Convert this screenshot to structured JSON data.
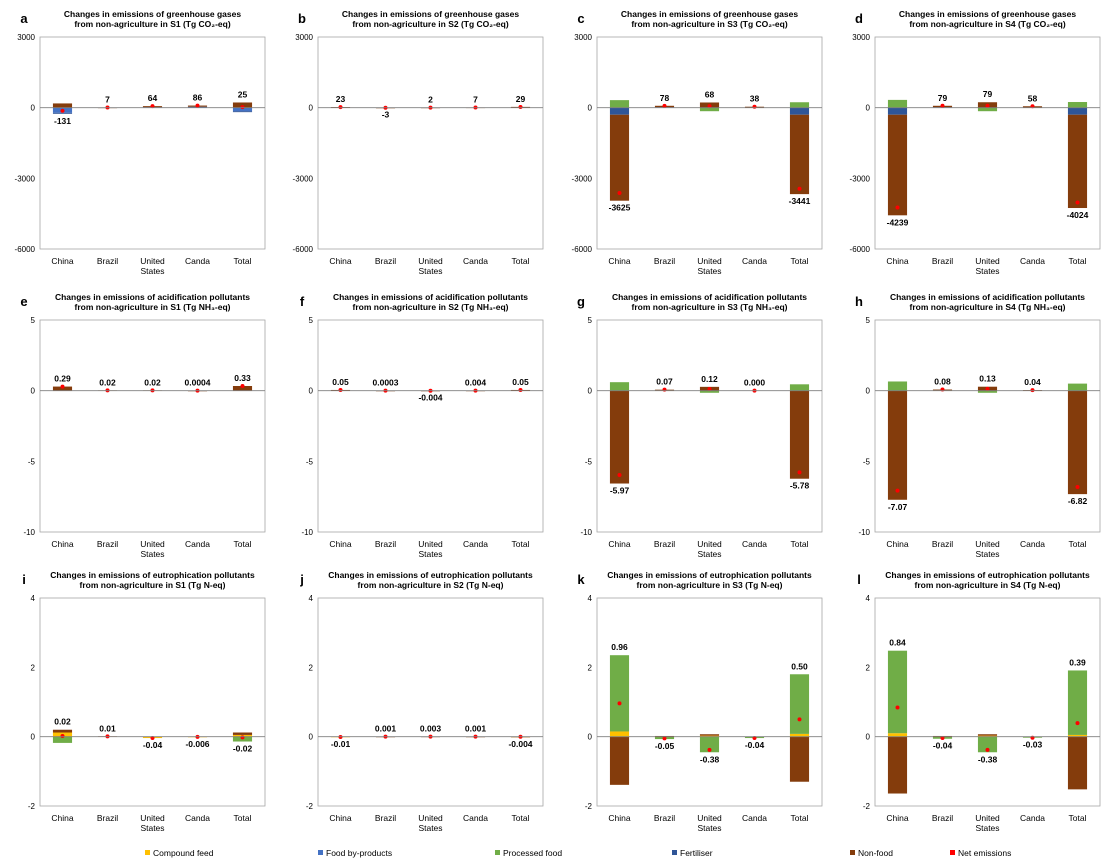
{
  "colors": {
    "compound_feed": "#ffc000",
    "food_by_products": "#4472c4",
    "processed_food": "#70ad47",
    "fertiliser": "#2f5597",
    "non_food": "#843c0c",
    "net_emissions": "#ff0000"
  },
  "legend": [
    "Compound feed",
    "Food by-products",
    "Processed food",
    "Fertiliser",
    "Non-food",
    "Net emissions"
  ],
  "chart_data": [
    {
      "id": "a",
      "type": "bar",
      "stacked": true,
      "title_lines": [
        "Changes in emissions of greenhouse gases",
        "from non-agriculture  in S1 (Tg CO₂-eq)"
      ],
      "categories": [
        "China",
        "Brazil",
        "United States",
        "Canda",
        "Total"
      ],
      "ylim": [
        -6000,
        3000
      ],
      "yticks": [
        "3000",
        "0",
        "-3000",
        "-6000"
      ],
      "net_labels": [
        "-131",
        "7",
        "64",
        "86",
        "25"
      ],
      "net": [
        -131,
        7,
        64,
        86,
        25
      ],
      "series": [
        {
          "key": "compound_feed",
          "values": [
            0,
            0,
            0,
            0,
            0
          ]
        },
        {
          "key": "food_by_products",
          "values": [
            -220,
            0,
            20,
            40,
            -150
          ]
        },
        {
          "key": "processed_food",
          "values": [
            0,
            0,
            0,
            0,
            0
          ]
        },
        {
          "key": "fertiliser",
          "values": [
            -40,
            0,
            0,
            0,
            -40
          ]
        },
        {
          "key": "non_food",
          "values": [
            180,
            5,
            45,
            50,
            220
          ]
        }
      ]
    },
    {
      "id": "b",
      "type": "bar",
      "stacked": true,
      "title_lines": [
        "Changes in emissions of greenhouse gases",
        "from non-agriculture in S2 (Tg CO₂-eq)"
      ],
      "categories": [
        "China",
        "Brazil",
        "United States",
        "Canda",
        "Total"
      ],
      "ylim": [
        -6000,
        3000
      ],
      "yticks": [
        "3000",
        "0",
        "-3000",
        "-6000"
      ],
      "net_labels": [
        "23",
        "-3",
        "2",
        "7",
        "29"
      ],
      "net": [
        23,
        -3,
        2,
        7,
        29
      ],
      "series": [
        {
          "key": "non_food",
          "values": [
            25,
            -3,
            3,
            8,
            33
          ]
        }
      ]
    },
    {
      "id": "c",
      "type": "bar",
      "stacked": true,
      "title_lines": [
        "Changes in emissions of greenhouse gases",
        "from non-agriculture in S3 (Tg CO₂-eq)"
      ],
      "categories": [
        "China",
        "Brazil",
        "United States",
        "Canda",
        "Total"
      ],
      "ylim": [
        -6000,
        3000
      ],
      "yticks": [
        "3000",
        "0",
        "-3000",
        "-6000"
      ],
      "net_labels": [
        "-3625",
        "78",
        "68",
        "38",
        "-3441"
      ],
      "net": [
        -3625,
        78,
        68,
        38,
        -3441
      ],
      "series": [
        {
          "key": "compound_feed",
          "values": [
            0,
            0,
            0,
            0,
            0
          ]
        },
        {
          "key": "food_by_products",
          "values": [
            0,
            20,
            0,
            0,
            0
          ]
        },
        {
          "key": "processed_food",
          "values": [
            320,
            0,
            -150,
            0,
            230
          ]
        },
        {
          "key": "fertiliser",
          "values": [
            -300,
            0,
            0,
            0,
            -300
          ]
        },
        {
          "key": "non_food",
          "values": [
            -3650,
            60,
            220,
            40,
            -3370
          ]
        }
      ]
    },
    {
      "id": "d",
      "type": "bar",
      "stacked": true,
      "title_lines": [
        "Changes in emissions of greenhouse gases",
        "from non-agriculture in S4 (Tg CO₂-eq)"
      ],
      "categories": [
        "China",
        "Brazil",
        "United States",
        "Canda",
        "Total"
      ],
      "ylim": [
        -6000,
        3000
      ],
      "yticks": [
        "3000",
        "0",
        "-3000",
        "-6000"
      ],
      "net_labels": [
        "-4239",
        "79",
        "79",
        "58",
        "-4024"
      ],
      "net": [
        -4239,
        79,
        79,
        58,
        -4024
      ],
      "series": [
        {
          "key": "compound_feed",
          "values": [
            0,
            0,
            0,
            0,
            0
          ]
        },
        {
          "key": "food_by_products",
          "values": [
            0,
            20,
            0,
            0,
            0
          ]
        },
        {
          "key": "processed_food",
          "values": [
            330,
            0,
            -150,
            0,
            240
          ]
        },
        {
          "key": "fertiliser",
          "values": [
            -300,
            0,
            0,
            0,
            -300
          ]
        },
        {
          "key": "non_food",
          "values": [
            -4270,
            60,
            230,
            60,
            -3960
          ]
        }
      ]
    },
    {
      "id": "e",
      "type": "bar",
      "stacked": true,
      "title_lines": [
        "Changes in emissions of acidification pollutants",
        "from non-agriculture in S1 (Tg NH₃-eq)"
      ],
      "categories": [
        "China",
        "Brazil",
        "United States",
        "Canda",
        "Total"
      ],
      "ylim": [
        -10,
        5
      ],
      "yticks": [
        "5",
        "0",
        "-5",
        "-10"
      ],
      "net_labels": [
        "0.29",
        "0.02",
        "0.02",
        "0.0004",
        "0.33"
      ],
      "net": [
        0.29,
        0.02,
        0.02,
        0.0004,
        0.33
      ],
      "series": [
        {
          "key": "non_food",
          "values": [
            0.29,
            0.02,
            0.02,
            0.0004,
            0.33
          ]
        }
      ]
    },
    {
      "id": "f",
      "type": "bar",
      "stacked": true,
      "title_lines": [
        "Changes in emissions of acidification pollutants",
        "from non-agriculture in S2 (Tg NH₃-eq)"
      ],
      "categories": [
        "China",
        "Brazil",
        "United States",
        "Canda",
        "Total"
      ],
      "ylim": [
        -10,
        5
      ],
      "yticks": [
        "5",
        "0",
        "-5",
        "-10"
      ],
      "net_labels": [
        "0.05",
        "0.0003",
        "-0.004",
        "0.004",
        "0.05"
      ],
      "net": [
        0.05,
        0.0003,
        -0.004,
        0.004,
        0.05
      ],
      "series": [
        {
          "key": "non_food",
          "values": [
            0.05,
            0.0003,
            -0.004,
            0.004,
            0.05
          ]
        }
      ]
    },
    {
      "id": "g",
      "type": "bar",
      "stacked": true,
      "title_lines": [
        "Changes in emissions of acidification pollutants",
        "from non-agriculture in S3 (Tg NH₃-eq)"
      ],
      "categories": [
        "China",
        "Brazil",
        "United States",
        "Canda",
        "Total"
      ],
      "ylim": [
        -10,
        5
      ],
      "yticks": [
        "5",
        "0",
        "-5",
        "-10"
      ],
      "net_labels": [
        "-5.97",
        "0.07",
        "0.12",
        "0.000",
        "-5.78"
      ],
      "net": [
        -5.97,
        0.07,
        0.12,
        0.0,
        -5.78
      ],
      "series": [
        {
          "key": "processed_food",
          "values": [
            0.6,
            0.02,
            -0.15,
            0,
            0.45
          ]
        },
        {
          "key": "non_food",
          "values": [
            -6.57,
            0.05,
            0.27,
            0,
            -6.23
          ]
        }
      ]
    },
    {
      "id": "h",
      "type": "bar",
      "stacked": true,
      "title_lines": [
        "Changes in emissions of acidification pollutants",
        "from non-agriculture in S4 (Tg NH₃-eq)"
      ],
      "categories": [
        "China",
        "Brazil",
        "United States",
        "Canda",
        "Total"
      ],
      "ylim": [
        -10,
        5
      ],
      "yticks": [
        "5",
        "0",
        "-5",
        "-10"
      ],
      "net_labels": [
        "-7.07",
        "0.08",
        "0.13",
        "0.04",
        "-6.82"
      ],
      "net": [
        -7.07,
        0.08,
        0.13,
        0.04,
        -6.82
      ],
      "series": [
        {
          "key": "processed_food",
          "values": [
            0.65,
            0.02,
            -0.15,
            0,
            0.5
          ]
        },
        {
          "key": "non_food",
          "values": [
            -7.72,
            0.06,
            0.28,
            0.04,
            -7.32
          ]
        }
      ]
    },
    {
      "id": "i",
      "type": "bar",
      "stacked": true,
      "title_lines": [
        "Changes in emissions of eutrophication pollutants",
        "from non-agriculture in S1 (Tg N-eq)"
      ],
      "categories": [
        "China",
        "Brazil",
        "United States",
        "Canda",
        "Total"
      ],
      "ylim": [
        -2,
        4
      ],
      "yticks": [
        "4",
        "2",
        "0",
        "-2"
      ],
      "net_labels": [
        "0.02",
        "0.01",
        "-0.04",
        "-0.006",
        "-0.02"
      ],
      "net": [
        0.02,
        0.01,
        -0.04,
        -0.006,
        -0.02
      ],
      "series": [
        {
          "key": "compound_feed",
          "values": [
            0.12,
            0,
            -0.04,
            -0.006,
            0.05
          ]
        },
        {
          "key": "processed_food",
          "values": [
            -0.18,
            0,
            0,
            0,
            -0.14
          ]
        },
        {
          "key": "non_food",
          "values": [
            0.08,
            0.01,
            0,
            0,
            0.07
          ]
        }
      ]
    },
    {
      "id": "j",
      "type": "bar",
      "stacked": true,
      "title_lines": [
        "Changes in emissions of eutrophication pollutants",
        "from non-agriculture in S2 (Tg N-eq)"
      ],
      "categories": [
        "China",
        "Brazil",
        "United States",
        "Canda",
        "Total"
      ],
      "ylim": [
        -2,
        4
      ],
      "yticks": [
        "4",
        "2",
        "0",
        "-2"
      ],
      "net_labels": [
        "-0.01",
        "0.001",
        "0.003",
        "0.001",
        "-0.004"
      ],
      "net": [
        -0.01,
        0.001,
        0.003,
        0.001,
        -0.004
      ],
      "series": [
        {
          "key": "compound_feed",
          "values": [
            -0.01,
            0,
            0,
            0,
            -0.005
          ]
        },
        {
          "key": "non_food",
          "values": [
            0,
            0.001,
            0.003,
            0.001,
            0.001
          ]
        }
      ]
    },
    {
      "id": "k",
      "type": "bar",
      "stacked": true,
      "title_lines": [
        "Changes in emissions of eutrophication pollutants",
        "from non-agriculture in S3 (Tg N-eq)"
      ],
      "categories": [
        "China",
        "Brazil",
        "United States",
        "Canda",
        "Total"
      ],
      "ylim": [
        -2,
        4
      ],
      "yticks": [
        "4",
        "2",
        "0",
        "-2"
      ],
      "net_labels": [
        "0.96",
        "-0.05",
        "-0.38",
        "-0.04",
        "0.50"
      ],
      "net": [
        0.96,
        -0.05,
        -0.38,
        -0.04,
        0.5
      ],
      "series": [
        {
          "key": "compound_feed",
          "values": [
            0.15,
            0,
            0.03,
            0,
            0.08
          ]
        },
        {
          "key": "processed_food",
          "values": [
            2.2,
            -0.07,
            -0.45,
            -0.04,
            1.72
          ]
        },
        {
          "key": "non_food",
          "values": [
            -1.39,
            0.02,
            0.04,
            0,
            -1.3
          ]
        }
      ]
    },
    {
      "id": "l",
      "type": "bar",
      "stacked": true,
      "title_lines": [
        "Changes in emissions of eutrophication pollutants",
        "from non-agriculture in S4 (Tg N-eq)"
      ],
      "categories": [
        "China",
        "Brazil",
        "United States",
        "Canda",
        "Total"
      ],
      "ylim": [
        -2,
        4
      ],
      "yticks": [
        "4",
        "2",
        "0",
        "-2"
      ],
      "net_labels": [
        "0.84",
        "-0.04",
        "-0.38",
        "-0.03",
        "0.39"
      ],
      "net": [
        0.84,
        -0.04,
        -0.38,
        -0.03,
        0.39
      ],
      "series": [
        {
          "key": "compound_feed",
          "values": [
            0.1,
            0,
            0.03,
            0,
            0.05
          ]
        },
        {
          "key": "processed_food",
          "values": [
            2.38,
            -0.06,
            -0.45,
            -0.03,
            1.86
          ]
        },
        {
          "key": "non_food",
          "values": [
            -1.64,
            0.02,
            0.04,
            0,
            -1.52
          ]
        }
      ]
    }
  ]
}
